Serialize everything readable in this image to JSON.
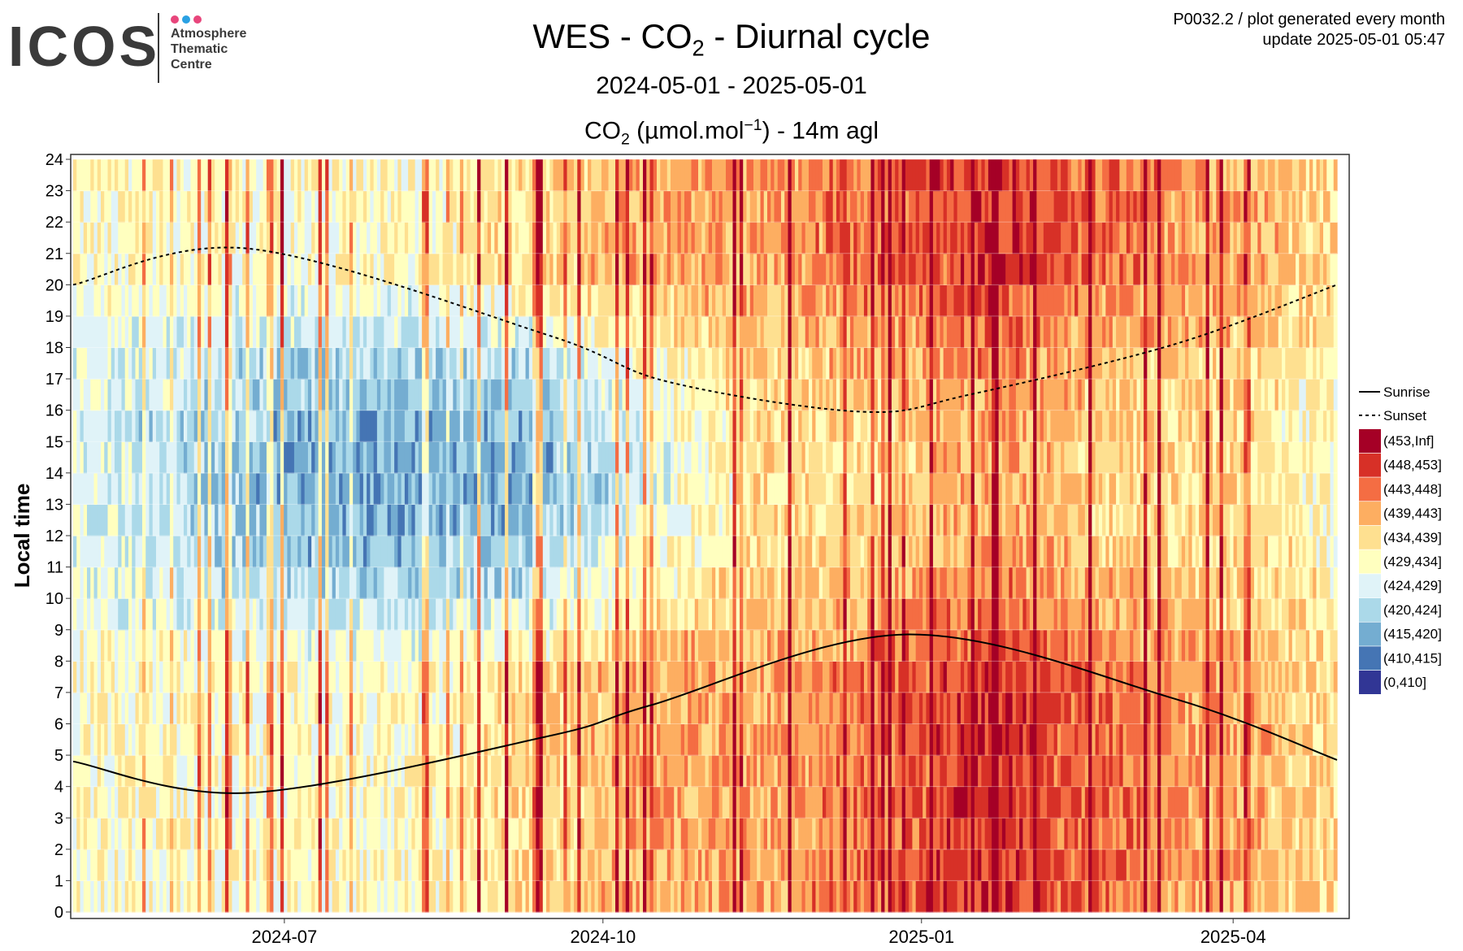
{
  "logo": {
    "word": "ICOS",
    "lines": [
      "Atmosphere",
      "Thematic",
      "Centre"
    ],
    "dot_colors": [
      "#e8467c",
      "#2aa1e3",
      "#e8467c"
    ]
  },
  "header": {
    "title_pre": "WES - CO",
    "title_sub": "2",
    "title_post": " - Diurnal cycle",
    "date_range": "2024-05-01 - 2025-05-01",
    "unit_pre": "CO",
    "unit_sub": "2",
    "unit_mid": " (µmol.mol",
    "unit_sup": "−1",
    "unit_post": ") - 14m agl",
    "meta_line1": "P0032.2 / plot generated every month",
    "meta_line2": "update  2025-05-01 05:47"
  },
  "chart_data": {
    "type": "heatmap",
    "x_label": "",
    "y_label": "Local time",
    "x_range": [
      "2024-05-01",
      "2025-05-01"
    ],
    "x_ticks": [
      {
        "date": "2024-07-01",
        "label": "2024-07"
      },
      {
        "date": "2024-10-01",
        "label": "2024-10"
      },
      {
        "date": "2025-01-01",
        "label": "2025-01"
      },
      {
        "date": "2025-04-01",
        "label": "2025-04"
      }
    ],
    "y_range": [
      0,
      24
    ],
    "y_ticks": [
      0,
      1,
      2,
      3,
      4,
      5,
      6,
      7,
      8,
      9,
      10,
      11,
      12,
      13,
      14,
      15,
      16,
      17,
      18,
      19,
      20,
      21,
      22,
      23,
      24
    ],
    "grid": true,
    "legend_position": "right",
    "lines": [
      {
        "name": "Sunrise",
        "style": "solid",
        "points": [
          [
            "2024-05-01",
            4.8
          ],
          [
            "2024-06-21",
            3.8
          ],
          [
            "2024-09-15",
            5.6
          ],
          [
            "2024-10-15",
            6.6
          ],
          [
            "2024-12-28",
            8.85
          ],
          [
            "2025-03-15",
            6.8
          ],
          [
            "2025-05-01",
            4.85
          ]
        ]
      },
      {
        "name": "Sunset",
        "style": "dashed",
        "points": [
          [
            "2024-05-01",
            20.0
          ],
          [
            "2024-06-21",
            21.15
          ],
          [
            "2024-09-15",
            18.4
          ],
          [
            "2024-10-20",
            16.9
          ],
          [
            "2024-12-15",
            15.95
          ],
          [
            "2025-01-15",
            16.5
          ],
          [
            "2025-03-15",
            18.1
          ],
          [
            "2025-05-01",
            20.0
          ]
        ]
      }
    ],
    "color_scale": [
      {
        "label": "(453,Inf]",
        "color": "#a50026"
      },
      {
        "label": "(448,453]",
        "color": "#d73027"
      },
      {
        "label": "(443,448]",
        "color": "#f46d43"
      },
      {
        "label": "(439,443]",
        "color": "#fdae61"
      },
      {
        "label": "(434,439]",
        "color": "#fee090"
      },
      {
        "label": "(429,434]",
        "color": "#ffffbf"
      },
      {
        "label": "(424,429]",
        "color": "#e0f3f8"
      },
      {
        "label": "(420,424]",
        "color": "#abd9e9"
      },
      {
        "label": "(415,420]",
        "color": "#74add1"
      },
      {
        "label": "(410,415]",
        "color": "#4575b4"
      },
      {
        "label": "(0,410]",
        "color": "#313695"
      }
    ],
    "monthly_profile": [
      {
        "month": "2024-05",
        "day_class": 6,
        "night_class": 5
      },
      {
        "month": "2024-06",
        "day_class": 7,
        "night_class": 5
      },
      {
        "month": "2024-07",
        "day_class": 8,
        "night_class": 5
      },
      {
        "month": "2024-08",
        "day_class": 8,
        "night_class": 5
      },
      {
        "month": "2024-09",
        "day_class": 8,
        "night_class": 4
      },
      {
        "month": "2024-10",
        "day_class": 6,
        "night_class": 3
      },
      {
        "month": "2024-11",
        "day_class": 4,
        "night_class": 3
      },
      {
        "month": "2024-12",
        "day_class": 4,
        "night_class": 2
      },
      {
        "month": "2025-01",
        "day_class": 3,
        "night_class": 1
      },
      {
        "month": "2025-02",
        "day_class": 4,
        "night_class": 2
      },
      {
        "month": "2025-03",
        "day_class": 4,
        "night_class": 3
      },
      {
        "month": "2025-04",
        "day_class": 5,
        "night_class": 4
      }
    ]
  }
}
